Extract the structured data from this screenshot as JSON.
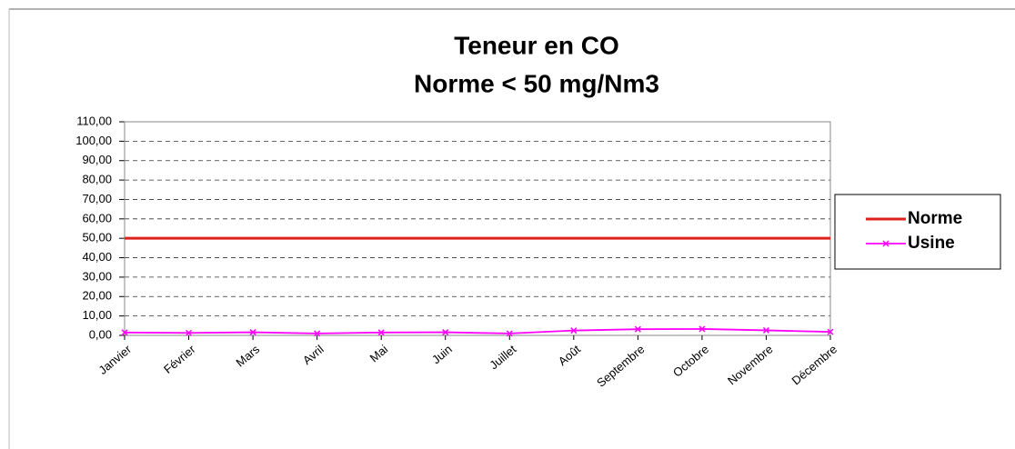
{
  "chart_data": {
    "type": "line",
    "title": "Teneur en CO",
    "subtitle": "Norme  < 50 mg/Nm3",
    "categories": [
      "Janvier",
      "Février",
      "Mars",
      "Avril",
      "Mai",
      "Juin",
      "Juillet",
      "Août",
      "Septembre",
      "Octobre",
      "Novembre",
      "Décembre"
    ],
    "series": [
      {
        "name": "Norme",
        "color": "#e0201b",
        "values": [
          50,
          50,
          50,
          50,
          50,
          50,
          50,
          50,
          50,
          50,
          50,
          50
        ]
      },
      {
        "name": "Usine",
        "color": "#ff00ff",
        "values": [
          1.5,
          1.3,
          1.6,
          1.0,
          1.5,
          1.6,
          1.0,
          2.5,
          3.2,
          3.3,
          2.6,
          1.8
        ]
      }
    ],
    "ylim": [
      0,
      110
    ],
    "yticks": [
      {
        "value": 0,
        "label": "0,00"
      },
      {
        "value": 10,
        "label": "10,00"
      },
      {
        "value": 20,
        "label": "20,00"
      },
      {
        "value": 30,
        "label": "30,00"
      },
      {
        "value": 40,
        "label": "40,00"
      },
      {
        "value": 50,
        "label": "50,00"
      },
      {
        "value": 60,
        "label": "60,00"
      },
      {
        "value": 70,
        "label": "70,00"
      },
      {
        "value": 80,
        "label": "80,00"
      },
      {
        "value": 90,
        "label": "90,00"
      },
      {
        "value": 100,
        "label": "100,00"
      },
      {
        "value": 110,
        "label": "110,00"
      }
    ],
    "grid": true,
    "legend": "right"
  }
}
